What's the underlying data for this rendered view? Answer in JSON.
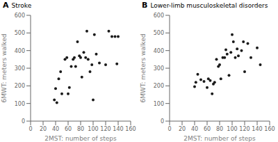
{
  "chart_data": [
    {
      "type": "scatter",
      "title": "Stroke",
      "annotations": [
        "A"
      ],
      "x": [
        38,
        40,
        42,
        45,
        48,
        50,
        55,
        58,
        60,
        62,
        65,
        68,
        70,
        72,
        75,
        78,
        80,
        82,
        85,
        88,
        90,
        92,
        95,
        98,
        100,
        102,
        105,
        110,
        120,
        125,
        130,
        135,
        138,
        140
      ],
      "values": [
        120,
        185,
        105,
        240,
        280,
        155,
        350,
        360,
        155,
        190,
        310,
        350,
        360,
        310,
        450,
        370,
        360,
        250,
        390,
        360,
        510,
        350,
        280,
        320,
        120,
        490,
        380,
        330,
        320,
        510,
        480,
        480,
        325,
        480
      ],
      "xlabel": "2MST: number of steps",
      "ylabel": "6MWT: meters walked",
      "xlim": [
        0,
        160
      ],
      "ylim": [
        0,
        600
      ],
      "xticks": [
        0,
        20,
        40,
        60,
        80,
        100,
        120,
        140,
        160
      ],
      "yticks": [
        0,
        100,
        200,
        300,
        400,
        500,
        600
      ],
      "color": "#1a1a1a",
      "grid": false
    },
    {
      "type": "scatter",
      "title": "Lower-limb musculoskeletal disorders",
      "annotations": [
        "B"
      ],
      "x": [
        40,
        42,
        45,
        50,
        55,
        60,
        62,
        65,
        68,
        70,
        72,
        75,
        78,
        80,
        82,
        85,
        88,
        90,
        92,
        95,
        98,
        100,
        102,
        105,
        108,
        110,
        115,
        118,
        120,
        125,
        130,
        140,
        145
      ],
      "values": [
        195,
        220,
        265,
        235,
        225,
        190,
        240,
        230,
        155,
        210,
        220,
        350,
        310,
        320,
        240,
        360,
        360,
        405,
        380,
        260,
        390,
        490,
        450,
        360,
        410,
        370,
        400,
        450,
        280,
        440,
        360,
        415,
        320
      ],
      "xlabel": "2MST: number of steps",
      "ylabel": "6MWT: meters walked",
      "xlim": [
        0,
        160
      ],
      "ylim": [
        0,
        600
      ],
      "xticks": [
        0,
        20,
        40,
        60,
        80,
        100,
        120,
        140,
        160
      ],
      "yticks": [
        0,
        100,
        200,
        300,
        400,
        500,
        600
      ],
      "color": "#1a1a1a",
      "grid": false
    }
  ]
}
